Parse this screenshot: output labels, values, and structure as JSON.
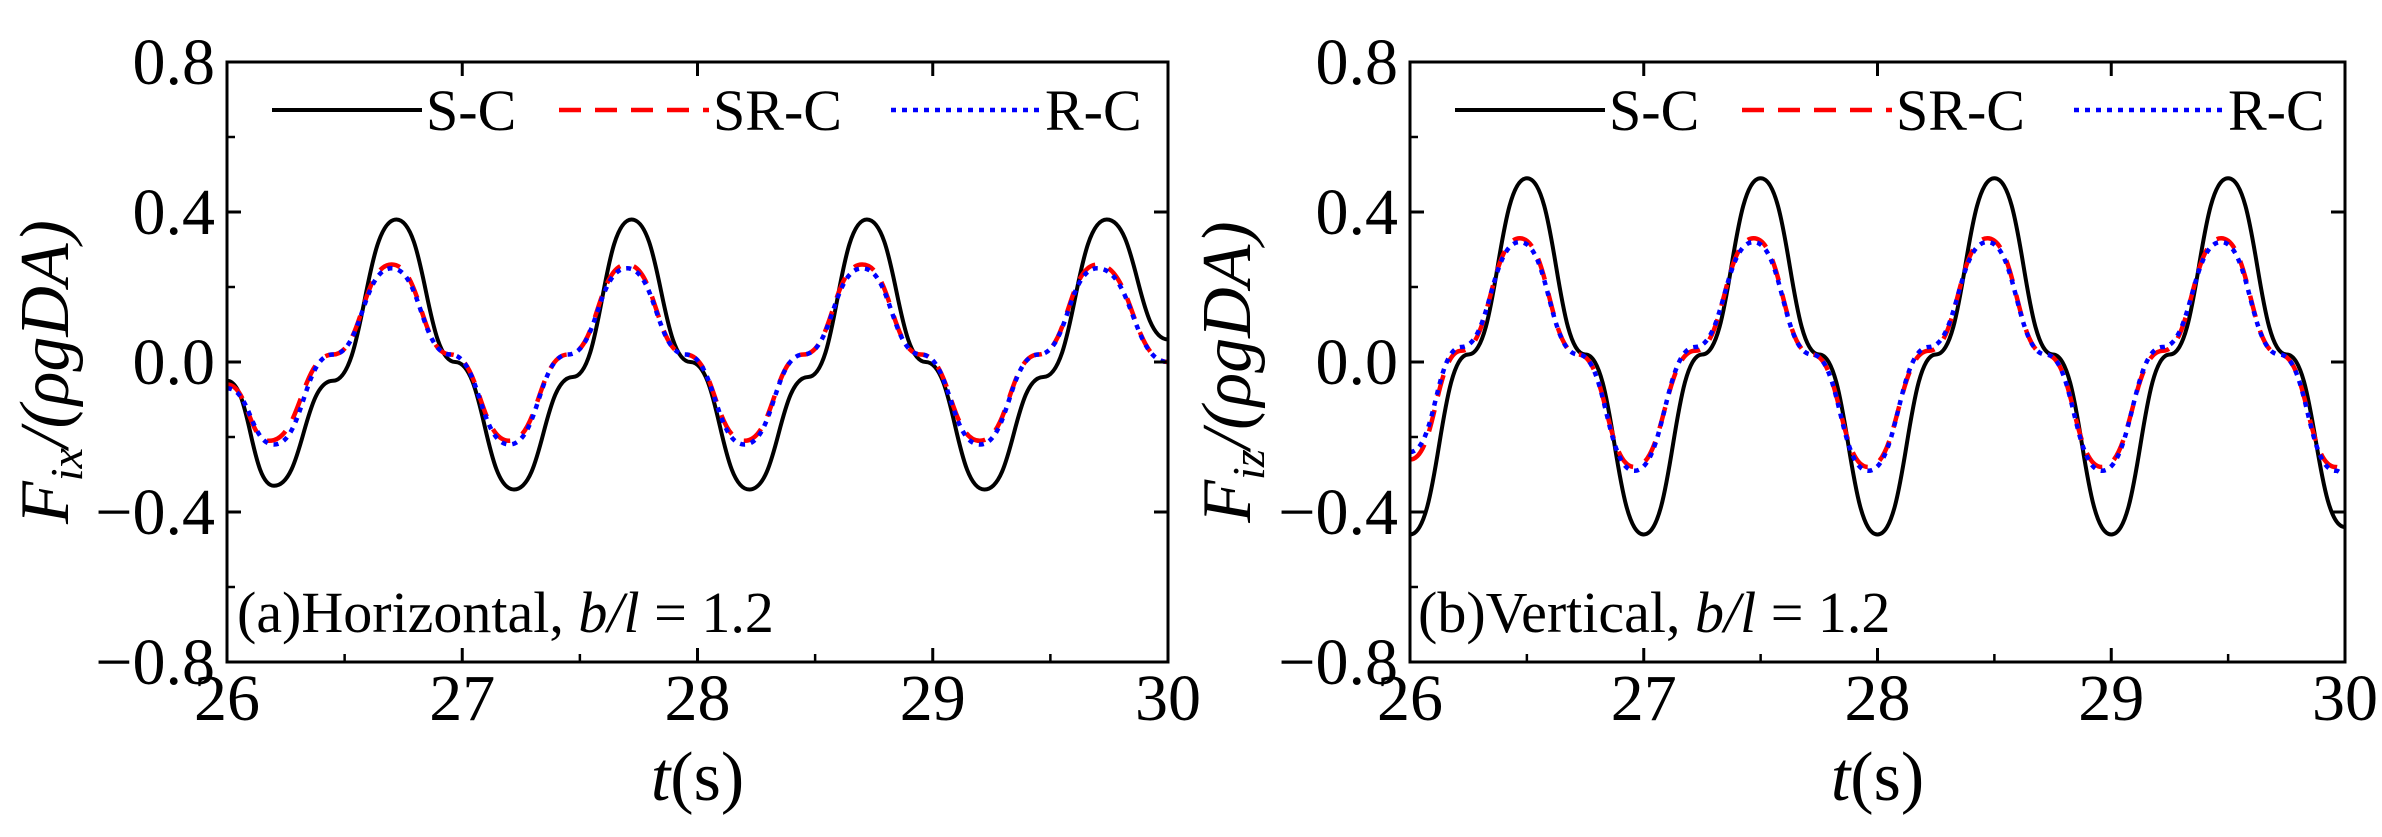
{
  "figure": {
    "panels": [
      {
        "id": "a",
        "annotation": {
          "prefix": "(a)Horizontal, ",
          "var": "b/l",
          "eq": " = 1.2"
        },
        "ylabel": {
          "main": "F",
          "sub": "ix",
          "rest": "/(ρgDA)"
        },
        "xlabel": {
          "var": "t",
          "unit": "(s)"
        }
      },
      {
        "id": "b",
        "annotation": {
          "prefix": "(b)Vertical, ",
          "var": "b/l",
          "eq": " = 1.2"
        },
        "ylabel": {
          "main": "F",
          "sub": "iz",
          "rest": "/(ρgDA)"
        },
        "xlabel": {
          "var": "t",
          "unit": "(s)"
        }
      }
    ]
  },
  "chart_data": [
    {
      "type": "line",
      "title": "(a)Horizontal, b/l = 1.2",
      "xlabel": "t(s)",
      "ylabel": "F_ix/(ρgDA)",
      "xlim": [
        26,
        30
      ],
      "ylim": [
        -0.8,
        0.8
      ],
      "xticks": [
        26,
        27,
        28,
        29,
        30
      ],
      "xtick_labels": [
        "26",
        "27",
        "28",
        "29",
        "30"
      ],
      "yticks": [
        0.8,
        0.4,
        0.0,
        -0.4,
        -0.8
      ],
      "ytick_labels": [
        "0.8",
        "0.4",
        "0.0",
        "−0.4",
        "−0.8"
      ],
      "legend": {
        "position": "top",
        "entries": [
          "S-C",
          "SR-C",
          "R-C"
        ]
      },
      "series": [
        {
          "name": "S-C",
          "color": "#000000",
          "style": "solid",
          "x": [
            26.0,
            26.2,
            26.45,
            26.72,
            26.97,
            27.22,
            27.47,
            27.72,
            27.97,
            28.22,
            28.47,
            28.72,
            28.97,
            29.22,
            29.47,
            29.74,
            30.0
          ],
          "y": [
            -0.05,
            -0.33,
            -0.05,
            0.38,
            0.0,
            -0.34,
            -0.04,
            0.38,
            0.0,
            -0.34,
            -0.04,
            0.38,
            0.0,
            -0.34,
            -0.04,
            0.38,
            0.06
          ]
        },
        {
          "name": "SR-C",
          "color": "#ff0000",
          "style": "dashed",
          "x": [
            26.0,
            26.18,
            26.45,
            26.7,
            26.95,
            27.2,
            27.45,
            27.7,
            27.95,
            28.2,
            28.45,
            28.7,
            28.95,
            29.2,
            29.45,
            29.7,
            30.0
          ],
          "y": [
            -0.06,
            -0.21,
            0.02,
            0.26,
            0.02,
            -0.21,
            0.02,
            0.26,
            0.02,
            -0.21,
            0.02,
            0.26,
            0.02,
            -0.21,
            0.02,
            0.26,
            0.0
          ]
        },
        {
          "name": "R-C",
          "color": "#0000ff",
          "style": "dotted",
          "x": [
            26.0,
            26.2,
            26.45,
            26.7,
            26.95,
            27.2,
            27.45,
            27.7,
            27.95,
            28.2,
            28.45,
            28.7,
            28.95,
            29.2,
            29.45,
            29.7,
            30.0
          ],
          "y": [
            -0.07,
            -0.22,
            0.02,
            0.25,
            0.02,
            -0.22,
            0.02,
            0.25,
            0.02,
            -0.22,
            0.02,
            0.25,
            0.02,
            -0.22,
            0.02,
            0.25,
            0.0
          ]
        }
      ]
    },
    {
      "type": "line",
      "title": "(b)Vertical, b/l = 1.2",
      "xlabel": "t(s)",
      "ylabel": "F_iz/(ρgDA)",
      "xlim": [
        26,
        30
      ],
      "ylim": [
        -0.8,
        0.8
      ],
      "xticks": [
        26,
        27,
        28,
        29,
        30
      ],
      "xtick_labels": [
        "26",
        "27",
        "28",
        "29",
        "30"
      ],
      "yticks": [
        0.8,
        0.4,
        0.0,
        -0.4,
        -0.8
      ],
      "ytick_labels": [
        "0.8",
        "0.4",
        "0.0",
        "−0.4",
        "−0.8"
      ],
      "legend": {
        "position": "top",
        "entries": [
          "S-C",
          "SR-C",
          "R-C"
        ]
      },
      "series": [
        {
          "name": "S-C",
          "color": "#000000",
          "style": "solid",
          "x": [
            26.0,
            26.25,
            26.5,
            26.75,
            27.0,
            27.25,
            27.5,
            27.75,
            28.0,
            28.25,
            28.5,
            28.75,
            29.0,
            29.25,
            29.5,
            29.75,
            30.0
          ],
          "y": [
            -0.46,
            0.02,
            0.49,
            0.02,
            -0.46,
            0.02,
            0.49,
            0.02,
            -0.46,
            0.02,
            0.49,
            0.02,
            -0.46,
            0.02,
            0.49,
            0.02,
            -0.44
          ]
        },
        {
          "name": "SR-C",
          "color": "#ff0000",
          "style": "dashed",
          "x": [
            26.0,
            26.22,
            26.47,
            26.72,
            26.96,
            27.22,
            27.47,
            27.72,
            27.96,
            28.22,
            28.47,
            28.72,
            28.96,
            29.22,
            29.47,
            29.72,
            29.96,
            30.0
          ],
          "y": [
            -0.26,
            0.03,
            0.33,
            0.02,
            -0.28,
            0.03,
            0.33,
            0.02,
            -0.28,
            0.03,
            0.33,
            0.02,
            -0.28,
            0.03,
            0.33,
            0.02,
            -0.28,
            -0.29
          ]
        },
        {
          "name": "R-C",
          "color": "#0000ff",
          "style": "dotted",
          "x": [
            26.0,
            26.22,
            26.47,
            26.72,
            26.96,
            27.22,
            27.47,
            27.72,
            27.96,
            28.22,
            28.47,
            28.72,
            28.96,
            29.22,
            29.47,
            29.72,
            29.96,
            30.0
          ],
          "y": [
            -0.24,
            0.04,
            0.32,
            0.02,
            -0.29,
            0.04,
            0.32,
            0.02,
            -0.29,
            0.04,
            0.32,
            0.02,
            -0.29,
            0.04,
            0.32,
            0.02,
            -0.29,
            -0.3
          ]
        }
      ]
    }
  ]
}
